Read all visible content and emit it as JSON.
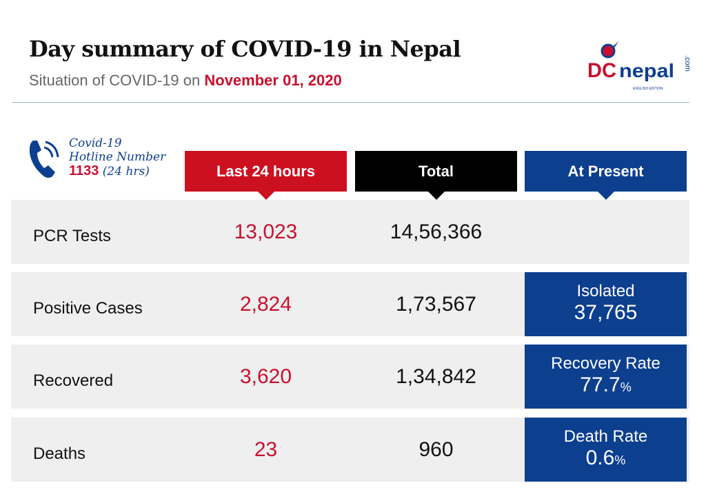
{
  "header": {
    "title": "Day summary of COVID-19 in Nepal",
    "subtitle_prefix": "Situation of COVID-19 on",
    "date": "November 01, 2020"
  },
  "logo": {
    "text": "DCnepal",
    "domain": ".com",
    "edition": "ENGLISH EDITION"
  },
  "hotline": {
    "line1": "Covid-19",
    "line2": "Hotline Number",
    "number": "1133",
    "hours": "(24 hrs)",
    "icon": "phone-icon"
  },
  "columns": [
    {
      "label": "Last 24 hours",
      "color": "#cc1020"
    },
    {
      "label": "Total",
      "color": "#000000"
    },
    {
      "label": "At Present",
      "color": "#0d3f8f"
    }
  ],
  "rows": [
    {
      "label": "PCR Tests",
      "last24": "13,023",
      "total": "14,56,366",
      "present_label": "",
      "present_value": "",
      "present_unit": ""
    },
    {
      "label": "Positive Cases",
      "last24": "2,824",
      "total": "1,73,567",
      "present_label": "Isolated",
      "present_value": "37,765",
      "present_unit": ""
    },
    {
      "label": "Recovered",
      "last24": "3,620",
      "total": "1,34,842",
      "present_label": "Recovery Rate",
      "present_value": "77.7",
      "present_unit": "%"
    },
    {
      "label": "Deaths",
      "last24": "23",
      "total": "960",
      "present_label": "Death Rate",
      "present_value": "0.6",
      "present_unit": "%"
    }
  ],
  "colors": {
    "red": "#c8102e",
    "blue": "#0d3f8f",
    "row_bg": "#efefef"
  }
}
